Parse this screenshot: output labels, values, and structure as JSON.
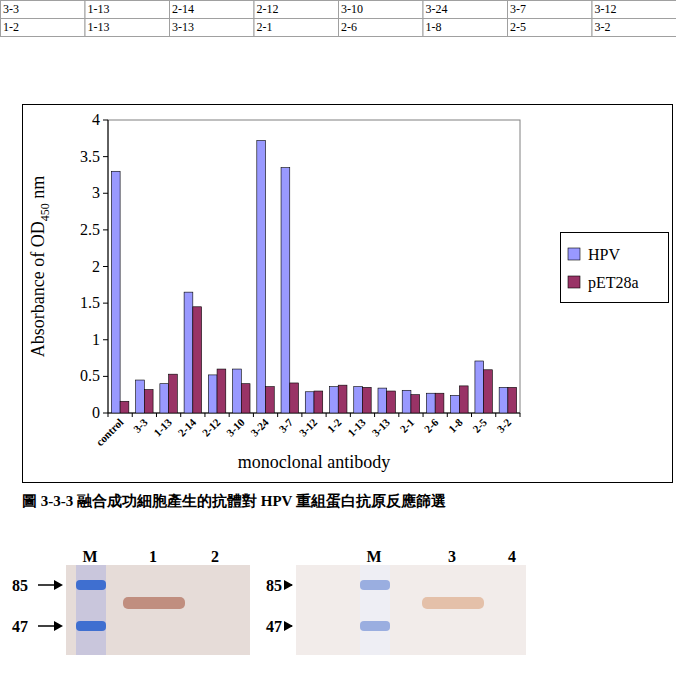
{
  "table": {
    "rows": [
      [
        "3-3",
        "1-13",
        "2-14",
        "2-12",
        "3-10",
        "3-24",
        "3-7",
        "3-12"
      ],
      [
        "1-2",
        "1-13",
        "3-13",
        "2-1",
        "2-6",
        "1-8",
        "2-5",
        "3-2"
      ]
    ]
  },
  "chart_data": {
    "type": "bar",
    "categories": [
      "control",
      "3-3",
      "1-13",
      "2-14",
      "2-12",
      "3-10",
      "3-24",
      "3-7",
      "3-12",
      "1-2",
      "1-13",
      "3-13",
      "2-1",
      "2-6",
      "1-8",
      "2-5",
      "3-2"
    ],
    "series": [
      {
        "name": "HPV",
        "color": "#9999ff",
        "values": [
          3.3,
          0.45,
          0.4,
          1.65,
          0.52,
          0.6,
          3.72,
          3.35,
          0.29,
          0.36,
          0.36,
          0.34,
          0.31,
          0.27,
          0.24,
          0.71,
          0.35
        ]
      },
      {
        "name": "pET28a",
        "color": "#993366",
        "values": [
          0.16,
          0.32,
          0.53,
          1.45,
          0.6,
          0.4,
          0.36,
          0.41,
          0.3,
          0.38,
          0.35,
          0.3,
          0.25,
          0.27,
          0.37,
          0.59,
          0.35
        ]
      }
    ],
    "ylim": [
      0,
      4
    ],
    "yticks": [
      0,
      0.5,
      1,
      1.5,
      2,
      2.5,
      3,
      3.5,
      4
    ],
    "y_label": "Absorbance of OD450 nm",
    "x_label": "monoclonal antibody",
    "legend": "right",
    "grid": false
  },
  "caption": "圖 3-3-3 融合成功細胞產生的抗體對 HPV 重組蛋白抗原反應篩選",
  "blot": {
    "panels": [
      {
        "lanes": [
          "M",
          "1",
          "2"
        ],
        "markers": [
          85,
          47
        ]
      },
      {
        "lanes": [
          "M",
          "3",
          "4"
        ],
        "markers": [
          85,
          47
        ]
      }
    ]
  }
}
